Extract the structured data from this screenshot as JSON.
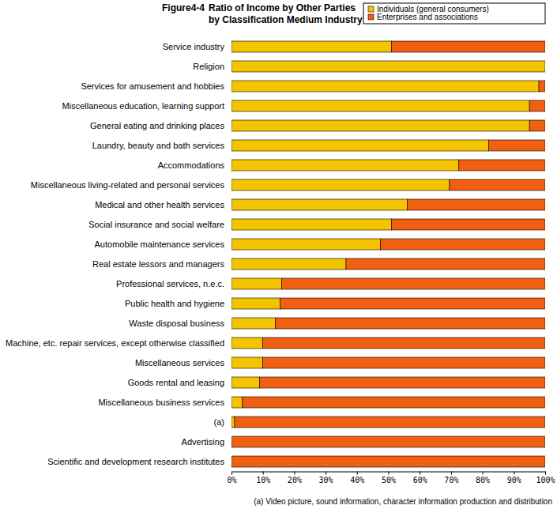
{
  "chart_data": {
    "type": "bar",
    "orientation": "horizontal",
    "stacked": true,
    "legend": "top-right",
    "grid": false,
    "title": "Figure4-4",
    "subtitle": [
      "Ratio of Income by Other Parties",
      "by Classification Medium Industry"
    ],
    "annotations": [
      "(a) Video picture, sound information, character information production and distribution"
    ],
    "categories": [
      "Service industry",
      "Religion",
      "Services for amusement and hobbies",
      "Miscellaneous education, learning support",
      "General eating and drinking places",
      "Laundry, beauty and bath services",
      "Accommodations",
      "Miscellaneous living-related and personal services",
      "Medical and other health services",
      "Social insurance and social welfare",
      "Automobile maintenance services",
      "Real estate lessors and managers",
      "Professional services, n.e.c.",
      "Public health and hygiene",
      "Waste disposal business",
      "Machine, etc. repair services, except otherwise classified",
      "Miscellaneous services",
      "Goods rental and leasing",
      "Miscellaneous business services",
      "(a)",
      "Advertising",
      "Scientific and development research institutes"
    ],
    "series": [
      {
        "name": "Individuals (general consumers)",
        "color": "#f5c400",
        "values": [
          51,
          100,
          98,
          95,
          95,
          82,
          72.5,
          69.5,
          56,
          51,
          47.5,
          36.5,
          16,
          15.5,
          14,
          10,
          10,
          9,
          3.5,
          1,
          0,
          0
        ]
      },
      {
        "name": "Enterprises and associations",
        "color": "#f06010",
        "values": [
          49,
          0,
          2,
          5,
          5,
          18,
          27.5,
          30.5,
          44,
          49,
          52.5,
          63.5,
          84,
          84.5,
          86,
          90,
          90,
          91,
          96.5,
          99,
          100,
          100
        ]
      }
    ],
    "xlim": [
      0,
      100
    ],
    "xticks": [
      {
        "value": 0,
        "label": "0%"
      },
      {
        "value": 10,
        "label": "10%"
      },
      {
        "value": 20,
        "label": "20%"
      },
      {
        "value": 30,
        "label": "30%"
      },
      {
        "value": 40,
        "label": "40%"
      },
      {
        "value": 50,
        "label": "50%"
      },
      {
        "value": 60,
        "label": "60%"
      },
      {
        "value": 70,
        "label": "70%"
      },
      {
        "value": 80,
        "label": "80%"
      },
      {
        "value": 90,
        "label": "90%"
      },
      {
        "value": 100,
        "label": "100%"
      }
    ]
  }
}
